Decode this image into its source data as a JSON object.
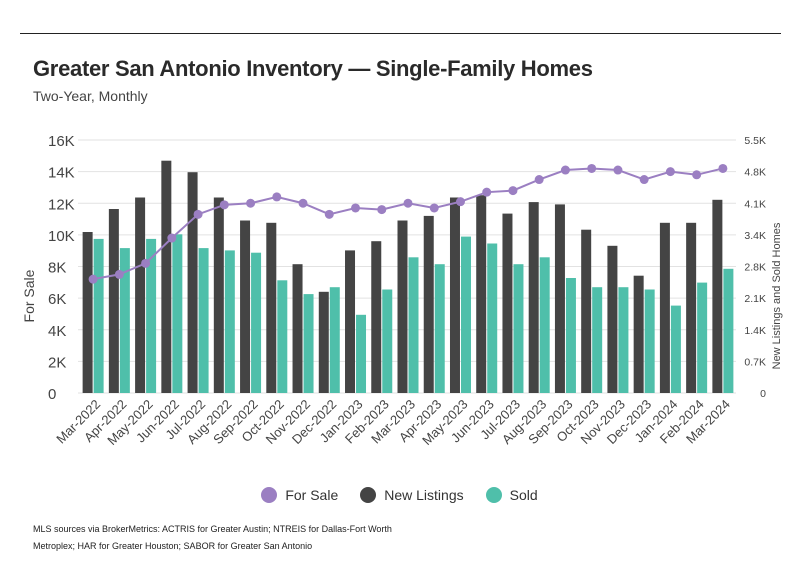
{
  "title": "Greater San Antonio Inventory — Single-Family Homes",
  "subtitle": "Two-Year, Monthly",
  "source": "MLS sources via BrokerMetrics: ACTRIS for Greater Austin; NTREIS for Dallas-Fort Worth Metroplex; HAR for Greater Houston; SABOR for Greater San Antonio",
  "colors": {
    "for_sale": "#9b7fc2",
    "new_listings": "#444444",
    "sold": "#4fbfaa"
  },
  "legend": [
    {
      "label": "For Sale",
      "color": "#9b7fc2"
    },
    {
      "label": "New Listings",
      "color": "#444444"
    },
    {
      "label": "Sold",
      "color": "#4fbfaa"
    }
  ],
  "chart_data": {
    "type": "bar",
    "categories": [
      "Mar-2022",
      "Apr-2022",
      "May-2022",
      "Jun-2022",
      "Jul-2022",
      "Aug-2022",
      "Sep-2022",
      "Oct-2022",
      "Nov-2022",
      "Dec-2022",
      "Jan-2023",
      "Feb-2023",
      "Mar-2023",
      "Apr-2023",
      "May-2023",
      "Jun-2023",
      "Jul-2023",
      "Aug-2023",
      "Sep-2023",
      "Oct-2023",
      "Nov-2023",
      "Dec-2023",
      "Jan-2024",
      "Feb-2024",
      "Mar-2024"
    ],
    "ylabel": "For Sale",
    "y2label": "New Listings and Sold Homes",
    "ylim": [
      0,
      16000
    ],
    "y2lim": [
      0,
      5500
    ],
    "yticks": [
      "0",
      "2K",
      "4K",
      "6K",
      "8K",
      "10K",
      "12K",
      "14K",
      "16K"
    ],
    "y2ticks": [
      "0",
      "0.7K",
      "1.4K",
      "2.1K",
      "2.8K",
      "3.4K",
      "4.1K",
      "4.8K",
      "5.5K"
    ],
    "grid": true,
    "legend_position": "bottom",
    "series": [
      {
        "name": "New Listings",
        "type": "bar",
        "axis": "right",
        "values": [
          3500,
          4000,
          4250,
          5050,
          4800,
          4250,
          3750,
          3700,
          2800,
          2200,
          3100,
          3300,
          3750,
          3850,
          4250,
          4300,
          3900,
          4150,
          4100,
          3550,
          3200,
          2550,
          3700,
          3700,
          4200
        ]
      },
      {
        "name": "Sold",
        "type": "bar",
        "axis": "right",
        "values": [
          3350,
          3150,
          3350,
          3450,
          3150,
          3100,
          3050,
          2450,
          2150,
          2300,
          1700,
          2250,
          2950,
          2800,
          3400,
          3250,
          2800,
          2950,
          2500,
          2300,
          2300,
          2250,
          1900,
          2400,
          2700
        ]
      },
      {
        "name": "For Sale",
        "type": "line",
        "axis": "left",
        "values": [
          7200,
          7500,
          8200,
          9800,
          11300,
          11900,
          12000,
          12400,
          12000,
          11300,
          11700,
          11600,
          12000,
          11700,
          12100,
          12700,
          12800,
          13500,
          14100,
          14200,
          14100,
          13500,
          14000,
          13800,
          14200
        ]
      }
    ]
  }
}
